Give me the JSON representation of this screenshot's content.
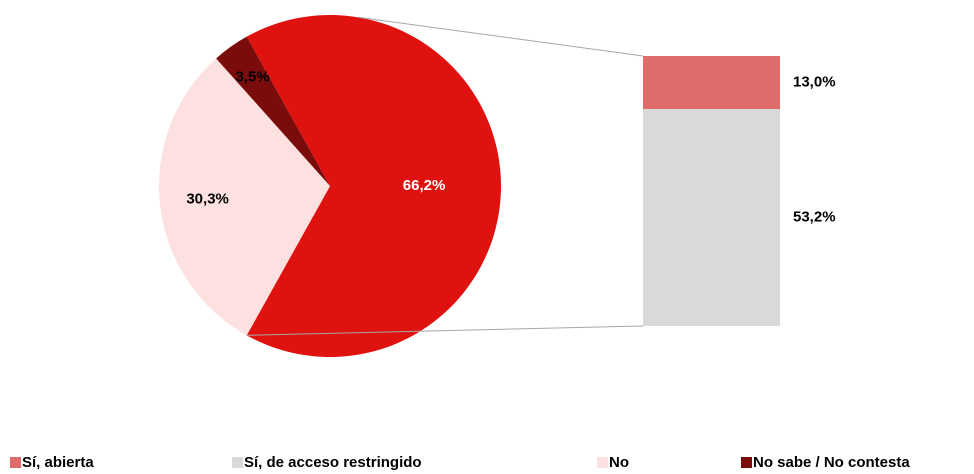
{
  "chart_data": {
    "type": "pie-of-bar",
    "pie_combined": {
      "value": 66.2,
      "value_label": "66,2%",
      "color": "#e0120f"
    },
    "series": [
      {
        "name": "Sí, abierta",
        "color": "#e06b6b",
        "values": [
          13.0
        ],
        "value_labels": [
          "13,0%"
        ],
        "part": "bar"
      },
      {
        "name": "Sí, de acceso restringido",
        "color": "#d9d9d9",
        "values": [
          53.2
        ],
        "value_labels": [
          "53,2%"
        ],
        "part": "bar"
      },
      {
        "name": "No",
        "color": "#fde0e0",
        "values": [
          30.3
        ],
        "value_labels": [
          "30,3%"
        ],
        "part": "pie"
      },
      {
        "name": "No sabe / No contesta",
        "color": "#7a0c0c",
        "values": [
          3.5
        ],
        "value_labels": [
          "3,5%"
        ],
        "part": "pie"
      }
    ]
  }
}
